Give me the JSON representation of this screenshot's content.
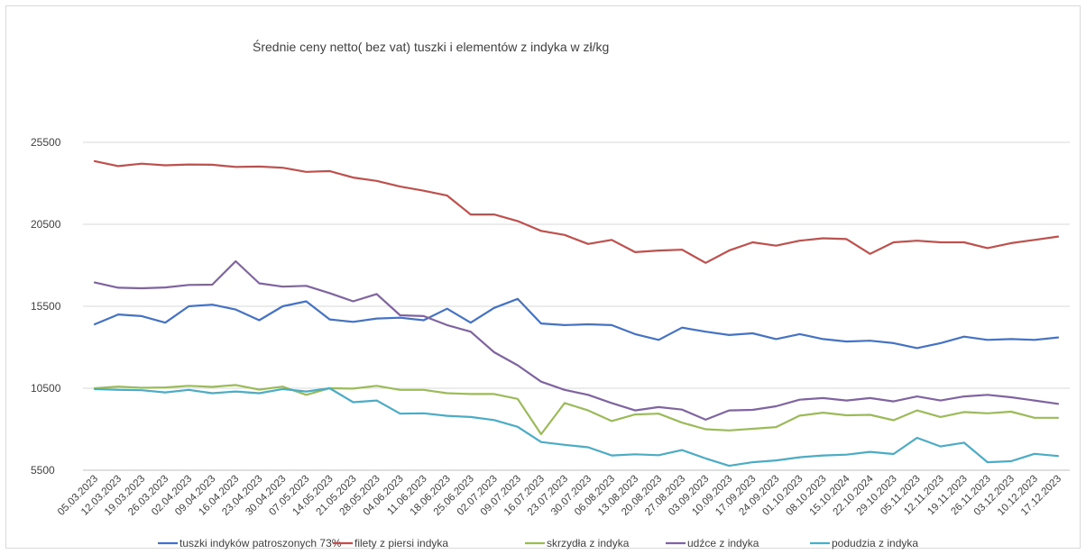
{
  "chart_data": {
    "type": "line",
    "title": "Średnie ceny netto( bez vat) tuszki i elementów z indyka w zł/kg",
    "xlabel": "",
    "ylabel": "",
    "ylim": [
      5500,
      25500
    ],
    "yticks": [
      5500,
      10500,
      15500,
      20500,
      25500
    ],
    "grid": true,
    "legend_position": "bottom",
    "x": [
      "05.03.2023",
      "12.03.2023",
      "19.03.2023",
      "26.03.2023",
      "02.04.2023",
      "09.04.2023",
      "16.04.2023",
      "23.04.2023",
      "30.04.2023",
      "07.05.2023",
      "14.05.2023",
      "21.05.2023",
      "28.05.2023",
      "04.06.2023",
      "11.06.2023",
      "18.06.2023",
      "25.06.2023",
      "02.07.2023",
      "09.07.2023",
      "16.07.2023",
      "23.07.2023",
      "30.07.2023",
      "06.08.2023",
      "13.08.2023",
      "20.08.2023",
      "27.08.2023",
      "03.09.2023",
      "10.09.2023",
      "17.09.2023",
      "24.09.2023",
      "01.10.2023",
      "08.10.2023",
      "15.10.2024",
      "22.10.2024",
      "29.10.2023",
      "05.11.2023",
      "12.11.2023",
      "19.11.2023",
      "26.11.2023",
      "03.12.2023",
      "10.12.2023",
      "17.12.2023"
    ],
    "series": [
      {
        "name": "tuszki indyków patroszonych 73%",
        "color": "#4472c4",
        "values": [
          14400,
          15000,
          14900,
          14500,
          15500,
          15600,
          15300,
          14650,
          15500,
          15800,
          14700,
          14550,
          14750,
          14800,
          14650,
          15350,
          14500,
          15400,
          15950,
          14450,
          14350,
          14400,
          14350,
          13800,
          13450,
          14200,
          13950,
          13750,
          13850,
          13500,
          13800,
          13500,
          13350,
          13400,
          13250,
          12950,
          13250,
          13650,
          13450,
          13500,
          13450,
          13600
        ]
      },
      {
        "name": "filety z piersi indyka",
        "color": "#c0504d",
        "values": [
          24350,
          24050,
          24200,
          24100,
          24150,
          24130,
          24000,
          24020,
          23950,
          23700,
          23750,
          23350,
          23150,
          22800,
          22550,
          22250,
          21100,
          21100,
          20700,
          20100,
          19850,
          19300,
          19550,
          18800,
          18900,
          18950,
          18150,
          18900,
          19400,
          19200,
          19500,
          19650,
          19600,
          18700,
          19400,
          19500,
          19400,
          19400,
          19050,
          19350,
          19550,
          19750
        ]
      },
      {
        "name": "skrzydła z indyka",
        "color": "#9bbb59",
        "values": [
          10500,
          10600,
          10530,
          10550,
          10650,
          10580,
          10700,
          10420,
          10600,
          10100,
          10500,
          10480,
          10650,
          10400,
          10400,
          10200,
          10150,
          10150,
          9850,
          7700,
          9600,
          9150,
          8500,
          8900,
          8950,
          8400,
          8000,
          7930,
          8030,
          8130,
          8830,
          9010,
          8850,
          8880,
          8550,
          9150,
          8750,
          9050,
          8970,
          9070,
          8700,
          8700
        ]
      },
      {
        "name": "udźce z indyka",
        "color": "#8064a2",
        "values": [
          16950,
          16630,
          16600,
          16650,
          16800,
          16820,
          18250,
          16900,
          16700,
          16750,
          16300,
          15800,
          16250,
          14950,
          14900,
          14350,
          13950,
          12700,
          11900,
          10900,
          10400,
          10100,
          9600,
          9150,
          9350,
          9200,
          8580,
          9150,
          9180,
          9400,
          9800,
          9900,
          9750,
          9900,
          9700,
          10000,
          9750,
          10000,
          10100,
          9950,
          9750,
          9550
        ]
      },
      {
        "name": "podudzia z indyka",
        "color": "#4bacc6",
        "values": [
          10450,
          10400,
          10380,
          10250,
          10400,
          10200,
          10300,
          10200,
          10450,
          10300,
          10500,
          9650,
          9750,
          8950,
          8970,
          8820,
          8750,
          8560,
          8150,
          7220,
          7050,
          6900,
          6400,
          6470,
          6420,
          6730,
          6220,
          5770,
          5990,
          6100,
          6290,
          6400,
          6450,
          6620,
          6490,
          7480,
          6950,
          7180,
          5990,
          6050,
          6500,
          6370
        ]
      }
    ]
  }
}
